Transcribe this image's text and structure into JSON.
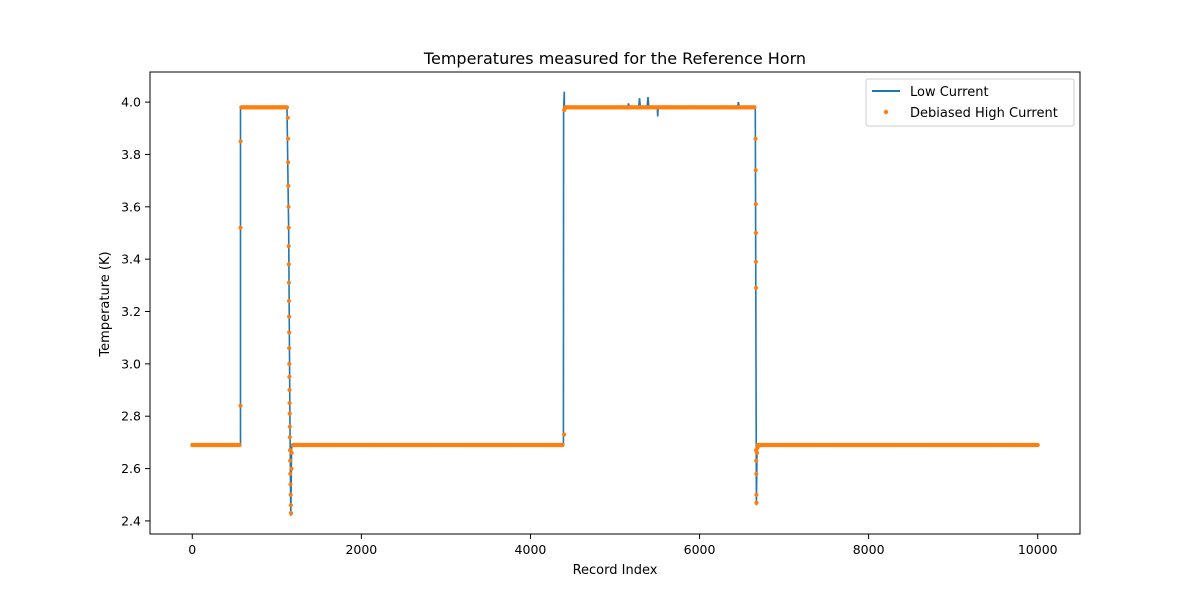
{
  "chart_data": {
    "type": "line",
    "title": "Temperatures measured for the Reference Horn",
    "xlabel": "Record Index",
    "ylabel": "Temperature (K)",
    "xlim": [
      -500,
      10500
    ],
    "ylim": [
      2.35,
      4.115
    ],
    "xticks": [
      0,
      2000,
      4000,
      6000,
      8000,
      10000
    ],
    "yticks": [
      2.4,
      2.6,
      2.8,
      3.0,
      3.2,
      3.4,
      3.6,
      3.8,
      4.0
    ],
    "xtick_labels": [
      "0",
      "2000",
      "4000",
      "6000",
      "8000",
      "10000"
    ],
    "ytick_labels": [
      "2.4",
      "2.6",
      "2.8",
      "3.0",
      "3.2",
      "3.4",
      "3.6",
      "3.8",
      "4.0"
    ],
    "grid": false,
    "legend_position": "top-right",
    "series": [
      {
        "name": "Low Current",
        "style": "line",
        "color": "#1f77b4",
        "x": [
          0,
          570,
          570,
          575,
          1100,
          1120,
          1140,
          1155,
          1165,
          1175,
          1185,
          1200,
          4390,
          4392,
          4400,
          4402,
          4405,
          4420,
          5150,
          5160,
          5170,
          5280,
          5290,
          5300,
          5380,
          5390,
          5400,
          5500,
          5505,
          5510,
          6450,
          6460,
          6470,
          6660,
          6668,
          6672,
          6680,
          6690,
          6700,
          10000
        ],
        "y": [
          2.69,
          2.69,
          3.98,
          3.98,
          3.98,
          3.98,
          3.5,
          2.8,
          2.42,
          2.68,
          2.69,
          2.69,
          2.69,
          3.97,
          4.04,
          3.98,
          3.975,
          3.98,
          3.98,
          3.995,
          3.98,
          3.98,
          4.015,
          3.98,
          3.98,
          4.02,
          3.98,
          3.98,
          3.945,
          3.98,
          3.98,
          4.0,
          3.98,
          3.98,
          3.0,
          2.46,
          2.66,
          2.69,
          2.69,
          2.69
        ]
      },
      {
        "name": "Debiased High Current",
        "style": "scatter",
        "color": "#ff7f0e",
        "segments": [
          {
            "x_start": 0,
            "x_end": 565,
            "y": 2.69
          },
          {
            "x_start": 580,
            "x_end": 1120,
            "y": 3.98
          },
          {
            "x_start": 1190,
            "x_end": 4380,
            "y": 2.69
          },
          {
            "x_start": 4410,
            "x_end": 6650,
            "y": 3.98
          },
          {
            "x_start": 6690,
            "x_end": 10000,
            "y": 2.69
          }
        ],
        "transition_points": [
          {
            "x": 570,
            "y": 2.84
          },
          {
            "x": 570,
            "y": 3.52
          },
          {
            "x": 572,
            "y": 3.85
          },
          {
            "x": 1130,
            "y": 3.94
          },
          {
            "x": 1132,
            "y": 3.86
          },
          {
            "x": 1134,
            "y": 3.77
          },
          {
            "x": 1136,
            "y": 3.68
          },
          {
            "x": 1138,
            "y": 3.6
          },
          {
            "x": 1140,
            "y": 3.52
          },
          {
            "x": 1141,
            "y": 3.45
          },
          {
            "x": 1142,
            "y": 3.38
          },
          {
            "x": 1143,
            "y": 3.31
          },
          {
            "x": 1144,
            "y": 3.24
          },
          {
            "x": 1145,
            "y": 3.18
          },
          {
            "x": 1146,
            "y": 3.12
          },
          {
            "x": 1147,
            "y": 3.06
          },
          {
            "x": 1148,
            "y": 3.0
          },
          {
            "x": 1149,
            "y": 2.95
          },
          {
            "x": 1150,
            "y": 2.9
          },
          {
            "x": 1151,
            "y": 2.85
          },
          {
            "x": 1152,
            "y": 2.81
          },
          {
            "x": 1153,
            "y": 2.76
          },
          {
            "x": 1154,
            "y": 2.72
          },
          {
            "x": 1156,
            "y": 2.67
          },
          {
            "x": 1158,
            "y": 2.63
          },
          {
            "x": 1160,
            "y": 2.58
          },
          {
            "x": 1162,
            "y": 2.54
          },
          {
            "x": 1164,
            "y": 2.5
          },
          {
            "x": 1166,
            "y": 2.46
          },
          {
            "x": 1168,
            "y": 2.43
          },
          {
            "x": 1172,
            "y": 2.6
          },
          {
            "x": 1176,
            "y": 2.66
          },
          {
            "x": 4398,
            "y": 2.73
          },
          {
            "x": 4400,
            "y": 3.97
          },
          {
            "x": 6662,
            "y": 3.86
          },
          {
            "x": 6664,
            "y": 3.74
          },
          {
            "x": 6665,
            "y": 3.61
          },
          {
            "x": 6666,
            "y": 3.5
          },
          {
            "x": 6667,
            "y": 3.39
          },
          {
            "x": 6668,
            "y": 3.29
          },
          {
            "x": 6669,
            "y": 2.67
          },
          {
            "x": 6670,
            "y": 2.63
          },
          {
            "x": 6671,
            "y": 2.58
          },
          {
            "x": 6672,
            "y": 2.5
          },
          {
            "x": 6674,
            "y": 2.47
          },
          {
            "x": 6680,
            "y": 2.66
          },
          {
            "x": 6686,
            "y": 2.68
          }
        ]
      }
    ]
  }
}
